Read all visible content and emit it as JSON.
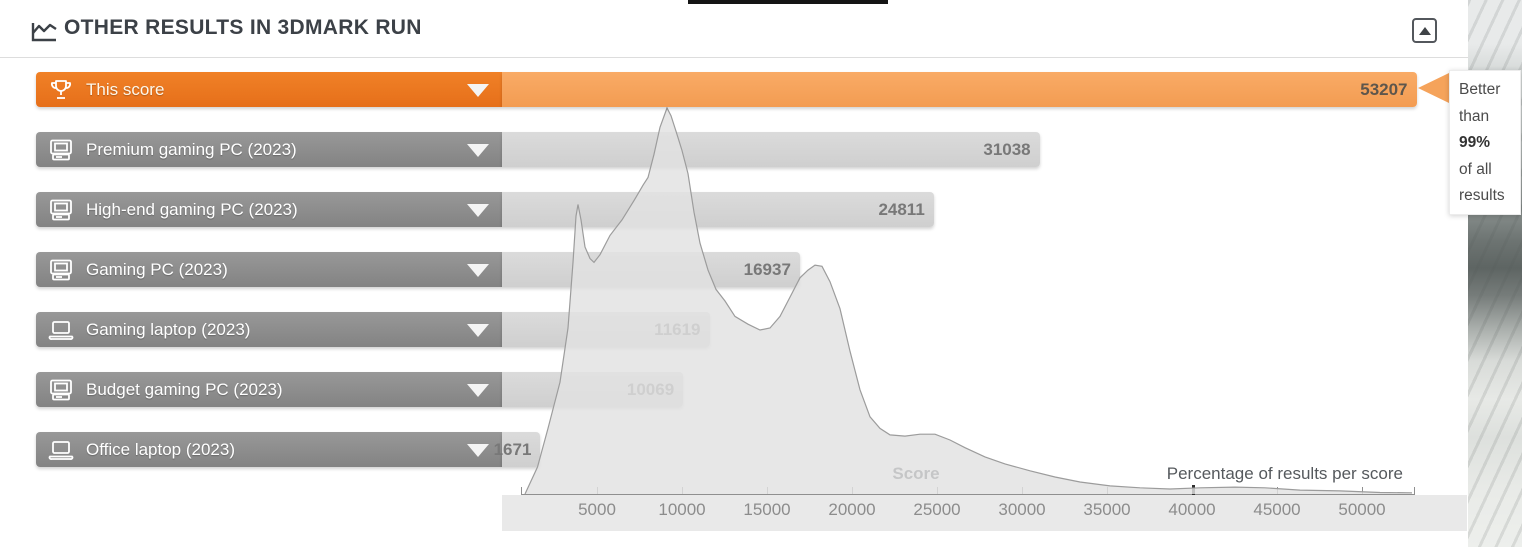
{
  "header": {
    "title": "OTHER RESULTS IN 3DMARK RUN"
  },
  "tooltip": {
    "lines": [
      "Better",
      "than",
      "99%",
      "of all",
      "results"
    ],
    "bold_index": 2
  },
  "axis": {
    "score_label": "Score",
    "pct_label": "Percentage of results per score"
  },
  "colors": {
    "accent_orange_label": "#ee7a1f",
    "accent_orange_bar": "#f6a45c",
    "row_gray_label": "#8f8f8f",
    "row_gray_bar": "#d5d5d5",
    "curve_fill": "#e2e2e2",
    "curve_stroke": "#9c9c9c"
  },
  "chart_data": {
    "type": "bar",
    "orientation": "horizontal",
    "title": "OTHER RESULTS IN 3DMARK RUN",
    "categories": [
      "This score",
      "Premium gaming PC (2023)",
      "High-end gaming PC (2023)",
      "Gaming PC (2023)",
      "Gaming laptop (2023)",
      "Budget gaming PC (2023)",
      "Office laptop (2023)"
    ],
    "values": [
      53207,
      31038,
      24811,
      16937,
      11619,
      10069,
      1671
    ],
    "highlight_index": 0,
    "better_than_percent": 99,
    "icons": [
      "trophy-icon",
      "desktop-icon",
      "desktop-icon",
      "desktop-icon",
      "laptop-icon",
      "desktop-icon",
      "laptop-icon"
    ],
    "xlabel": "Score",
    "x_axis_note": "Percentage of results per score",
    "x_ticks": [
      5000,
      10000,
      15000,
      20000,
      25000,
      30000,
      35000,
      40000,
      45000,
      50000
    ],
    "emphasized_tick": 40000,
    "xlim": [
      0,
      53500
    ],
    "distribution_area": {
      "type": "area",
      "x_is_score": true,
      "height_normalized_0_1": true,
      "points_score_h": [
        [
          765,
          0
        ],
        [
          1500,
          0.07
        ],
        [
          2118,
          0.17
        ],
        [
          2824,
          0.29
        ],
        [
          3294,
          0.43
        ],
        [
          3588,
          0.6
        ],
        [
          3765,
          0.72
        ],
        [
          3882,
          0.75
        ],
        [
          4059,
          0.71
        ],
        [
          4294,
          0.64
        ],
        [
          4588,
          0.61
        ],
        [
          4824,
          0.6
        ],
        [
          5176,
          0.62
        ],
        [
          5765,
          0.67
        ],
        [
          6471,
          0.71
        ],
        [
          7176,
          0.76
        ],
        [
          7706,
          0.8
        ],
        [
          8000,
          0.82
        ],
        [
          8353,
          0.88
        ],
        [
          8706,
          0.95
        ],
        [
          9118,
          1.0
        ],
        [
          9353,
          0.98
        ],
        [
          9647,
          0.94
        ],
        [
          10000,
          0.89
        ],
        [
          10353,
          0.83
        ],
        [
          10706,
          0.73
        ],
        [
          11059,
          0.65
        ],
        [
          11529,
          0.58
        ],
        [
          12000,
          0.53
        ],
        [
          12529,
          0.5
        ],
        [
          13118,
          0.46
        ],
        [
          13882,
          0.44
        ],
        [
          14588,
          0.425
        ],
        [
          15176,
          0.43
        ],
        [
          15765,
          0.46
        ],
        [
          16353,
          0.51
        ],
        [
          16941,
          0.56
        ],
        [
          17412,
          0.58
        ],
        [
          17824,
          0.593
        ],
        [
          18235,
          0.59
        ],
        [
          18706,
          0.55
        ],
        [
          19294,
          0.48
        ],
        [
          19882,
          0.37
        ],
        [
          20471,
          0.27
        ],
        [
          21059,
          0.2
        ],
        [
          21647,
          0.17
        ],
        [
          22235,
          0.153
        ],
        [
          23118,
          0.15
        ],
        [
          24000,
          0.155
        ],
        [
          24882,
          0.155
        ],
        [
          25765,
          0.14
        ],
        [
          26647,
          0.12
        ],
        [
          27824,
          0.096
        ],
        [
          29000,
          0.078
        ],
        [
          30471,
          0.06
        ],
        [
          31941,
          0.044
        ],
        [
          33412,
          0.031
        ],
        [
          35176,
          0.021
        ],
        [
          36941,
          0.016
        ],
        [
          38706,
          0.013
        ],
        [
          40471,
          0.016
        ],
        [
          42529,
          0.018
        ],
        [
          44294,
          0.016
        ],
        [
          46353,
          0.01
        ],
        [
          48706,
          0.008
        ],
        [
          51059,
          0.004
        ],
        [
          52941,
          0.003
        ]
      ]
    }
  }
}
